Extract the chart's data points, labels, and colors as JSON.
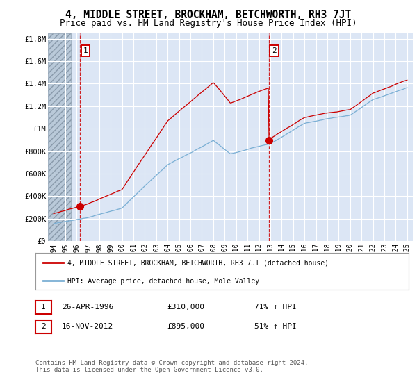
{
  "title": "4, MIDDLE STREET, BROCKHAM, BETCHWORTH, RH3 7JT",
  "subtitle": "Price paid vs. HM Land Registry's House Price Index (HPI)",
  "title_fontsize": 10.5,
  "subtitle_fontsize": 9,
  "background_color": "#ffffff",
  "plot_bg_color": "#dce6f5",
  "grid_color": "#ffffff",
  "red_line_color": "#cc0000",
  "blue_line_color": "#7aafd4",
  "sale1_x": 1996.32,
  "sale1_price": 310000,
  "sale2_x": 2012.88,
  "sale2_price": 895000,
  "ylim": [
    0,
    1850000
  ],
  "xlim": [
    1993.5,
    2025.5
  ],
  "yticks": [
    0,
    200000,
    400000,
    600000,
    800000,
    1000000,
    1200000,
    1400000,
    1600000,
    1800000
  ],
  "ytick_labels": [
    "£0",
    "£200K",
    "£400K",
    "£600K",
    "£800K",
    "£1M",
    "£1.2M",
    "£1.4M",
    "£1.6M",
    "£1.8M"
  ],
  "xtick_years": [
    1994,
    1995,
    1996,
    1997,
    1998,
    1999,
    2000,
    2001,
    2002,
    2003,
    2004,
    2005,
    2006,
    2007,
    2008,
    2009,
    2010,
    2011,
    2012,
    2013,
    2014,
    2015,
    2016,
    2017,
    2018,
    2019,
    2020,
    2021,
    2022,
    2023,
    2024,
    2025
  ],
  "legend_red_label": "4, MIDDLE STREET, BROCKHAM, BETCHWORTH, RH3 7JT (detached house)",
  "legend_blue_label": "HPI: Average price, detached house, Mole Valley",
  "info1_num": "1",
  "info1_date": "26-APR-1996",
  "info1_price": "£310,000",
  "info1_hpi": "71% ↑ HPI",
  "info2_num": "2",
  "info2_date": "16-NOV-2012",
  "info2_price": "£895,000",
  "info2_hpi": "51% ↑ HPI",
  "footer": "Contains HM Land Registry data © Crown copyright and database right 2024.\nThis data is licensed under the Open Government Licence v3.0.",
  "hatch_end_x": 1995.5
}
